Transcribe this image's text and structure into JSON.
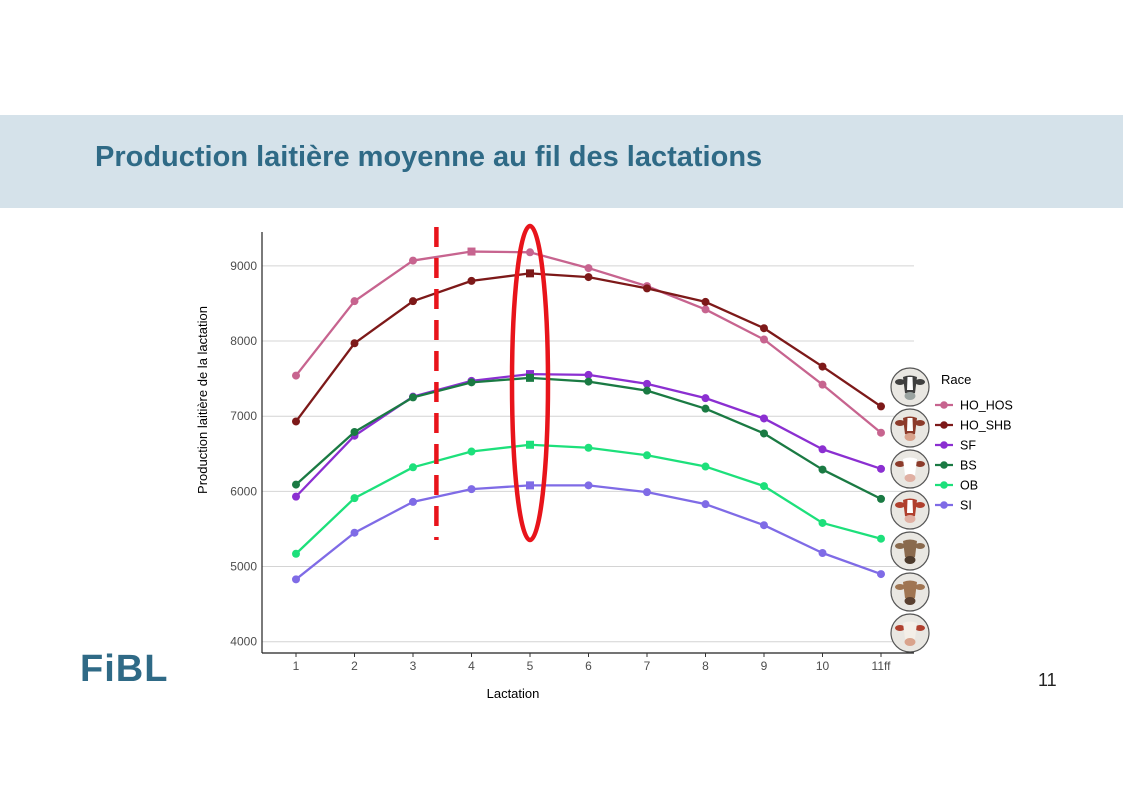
{
  "slide": {
    "title": "Production laitière moyenne au fil des lactations",
    "logo_text": "FiBL",
    "page_number": "11"
  },
  "chart_data": {
    "type": "line",
    "xlabel": "Lactation",
    "ylabel": "Production laitière de la lactation",
    "categories": [
      "1",
      "2",
      "3",
      "4",
      "5",
      "6",
      "7",
      "8",
      "9",
      "10",
      "11ff"
    ],
    "yticks": [
      4000,
      5000,
      6000,
      7000,
      8000,
      9000
    ],
    "ylim": [
      3850,
      9450
    ],
    "grid": "horizontal",
    "legend": {
      "title": "Race",
      "placement": "right"
    },
    "series": [
      {
        "name": "HO_HOS",
        "color": "#c7648f",
        "values": [
          7540,
          8530,
          9070,
          9190,
          9180,
          8970,
          8730,
          8420,
          8020,
          7420,
          6780
        ],
        "square_index": 3
      },
      {
        "name": "HO_SHB",
        "color": "#7d1919",
        "values": [
          6930,
          7970,
          8530,
          8800,
          8900,
          8850,
          8700,
          8520,
          8170,
          7660,
          7130
        ],
        "square_index": 4
      },
      {
        "name": "SF",
        "color": "#8b2fd1",
        "values": [
          5930,
          6740,
          7260,
          7470,
          7560,
          7550,
          7430,
          7240,
          6970,
          6560,
          6300
        ],
        "square_index": 4
      },
      {
        "name": "BS",
        "color": "#1a7a43",
        "values": [
          6090,
          6790,
          7250,
          7450,
          7510,
          7460,
          7340,
          7100,
          6770,
          6290,
          5900
        ],
        "square_index": 4
      },
      {
        "name": "OB",
        "color": "#1de07b",
        "values": [
          5170,
          5910,
          6320,
          6530,
          6620,
          6580,
          6480,
          6330,
          6070,
          5580,
          5370
        ],
        "square_index": 4
      },
      {
        "name": "SI",
        "color": "#7f6be6",
        "values": [
          4830,
          5450,
          5860,
          6030,
          6080,
          6080,
          5990,
          5830,
          5550,
          5180,
          4900
        ],
        "square_index": 4
      }
    ],
    "annotations": [
      {
        "type": "dashed-vertical-line",
        "color": "#e8141b",
        "x_position": 3.4
      },
      {
        "type": "ellipse",
        "color": "#e8141b",
        "x_position": 5
      }
    ],
    "cow_icons": [
      "holstein-cow-icon",
      "red-holstein-cow-icon",
      "simmental-cow-icon",
      "fleckvieh-cow-icon",
      "brown-swiss-cow-icon",
      "original-braunvieh-cow-icon",
      "simmental-white-face-cow-icon"
    ]
  }
}
